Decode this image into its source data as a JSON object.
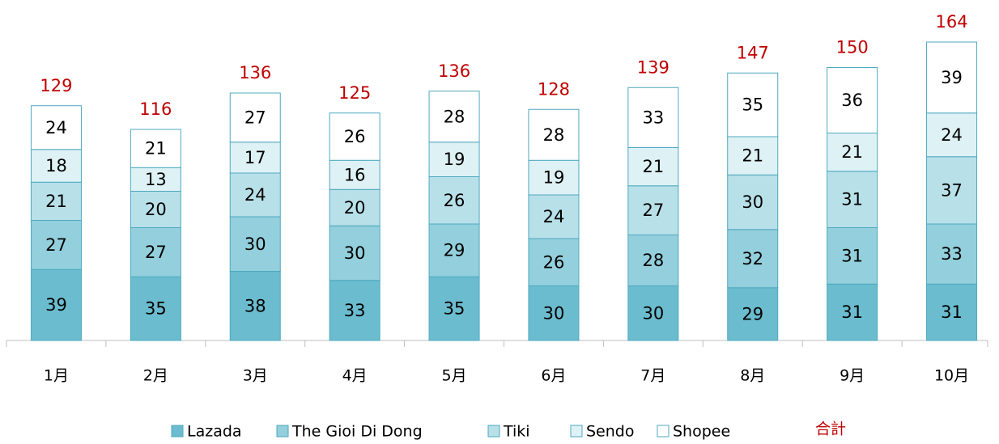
{
  "chart_data": {
    "type": "stacked_bar",
    "categories": [
      "1月",
      "2月",
      "3月",
      "4月",
      "5月",
      "6月",
      "7月",
      "8月",
      "9月",
      "10月"
    ],
    "series": [
      {
        "name": "Lazada",
        "color": "#6bbccf",
        "values": [
          39,
          35,
          38,
          33,
          35,
          30,
          30,
          29,
          31,
          31
        ]
      },
      {
        "name": "The Gioi Di Dong",
        "color": "#93cfdc",
        "values": [
          27,
          27,
          30,
          30,
          29,
          26,
          28,
          32,
          31,
          33
        ]
      },
      {
        "name": "Tiki",
        "color": "#b8e0e9",
        "values": [
          21,
          20,
          24,
          20,
          26,
          24,
          27,
          30,
          31,
          37
        ]
      },
      {
        "name": "Sendo",
        "color": "#def1f5",
        "values": [
          18,
          13,
          17,
          16,
          19,
          19,
          21,
          21,
          21,
          24
        ]
      },
      {
        "name": "Shopee",
        "color": "#ffffff",
        "values": [
          24,
          21,
          27,
          26,
          28,
          28,
          33,
          35,
          36,
          39
        ]
      }
    ],
    "totals": {
      "name": "合計",
      "color": "#c00000",
      "values": [
        129,
        116,
        136,
        125,
        136,
        128,
        139,
        147,
        150,
        164
      ]
    },
    "legend": "bottom"
  }
}
